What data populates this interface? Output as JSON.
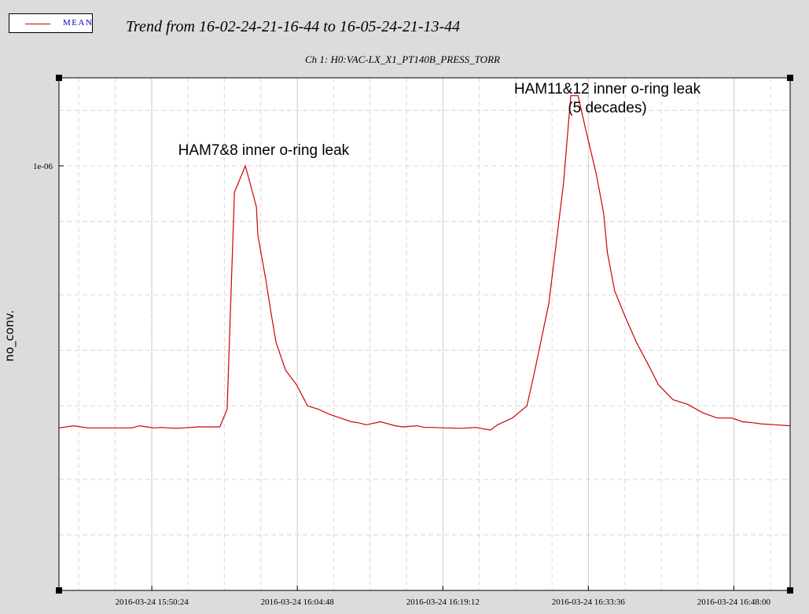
{
  "legend": {
    "label": "MEAN",
    "color": "#d00000"
  },
  "title": "Trend from 16-02-24-21-16-44 to 16-05-24-21-13-44",
  "chart_data": {
    "type": "line",
    "subtitle": "Ch 1: H0:VAC-LX_X1_PT140B_PRESS_TORR",
    "ylabel": "no_conv.",
    "xlabel": "",
    "y_scale": "log",
    "y_tick_labels": [
      {
        "value": 1e-06,
        "label": "1e-06"
      }
    ],
    "x_tick_labels": [
      "2016-03-24 15:50:24",
      "2016-03-24 16:04:48",
      "2016-03-24 16:19:12",
      "2016-03-24 16:33:36",
      "2016-03-24 16:48:00"
    ],
    "x_tick_positions": [
      0.127,
      0.326,
      0.525,
      0.724,
      0.923
    ],
    "xlim_fraction": [
      0,
      1
    ],
    "ylim": [
      5e-09,
      3e-06
    ],
    "grid": true,
    "annotations": [
      {
        "text": "HAM7&8 inner o-ring leak",
        "x": 0.28,
        "y": 1e-06,
        "lines": [
          "HAM7&8 inner o-ring leak"
        ]
      },
      {
        "text": "HAM11&12 inner o-ring leak\n(5 decades)",
        "x": 0.75,
        "y": 1.7e-06,
        "lines": [
          "HAM11&12 inner o-ring leak",
          "(5 decades)"
        ]
      }
    ],
    "series": [
      {
        "name": "MEAN",
        "color": "#d00000",
        "x": [
          0.0,
          0.02,
          0.04,
          0.07,
          0.09,
          0.1,
          0.11,
          0.12,
          0.13,
          0.14,
          0.15,
          0.16,
          0.17,
          0.18,
          0.19,
          0.2,
          0.21,
          0.22,
          0.23,
          0.24,
          0.255,
          0.27,
          0.272,
          0.283,
          0.29,
          0.297,
          0.31,
          0.325,
          0.34,
          0.355,
          0.37,
          0.385,
          0.4,
          0.41,
          0.42,
          0.44,
          0.46,
          0.47,
          0.49,
          0.5,
          0.51,
          0.53,
          0.55,
          0.57,
          0.59,
          0.6,
          0.62,
          0.64,
          0.65,
          0.67,
          0.69,
          0.7,
          0.71,
          0.72,
          0.735,
          0.745,
          0.75,
          0.76,
          0.775,
          0.79,
          0.805,
          0.82,
          0.84,
          0.86,
          0.88,
          0.9,
          0.92,
          0.935,
          0.95,
          0.96,
          0.98,
          1.0
        ],
        "y": [
          3.8e-08,
          3.9e-08,
          3.8e-08,
          3.8e-08,
          3.8e-08,
          3.8e-08,
          3.9e-08,
          3.85e-08,
          3.8e-08,
          3.82e-08,
          3.8e-08,
          3.78e-08,
          3.8e-08,
          3.82e-08,
          3.85e-08,
          3.85e-08,
          3.85e-08,
          3.85e-08,
          4.8e-08,
          7.2e-07,
          1e-06,
          6e-07,
          4.2e-07,
          2.4e-07,
          1.6e-07,
          1.1e-07,
          7.8e-08,
          6.5e-08,
          5e-08,
          4.8e-08,
          4.5e-08,
          4.3e-08,
          4.1e-08,
          4.05e-08,
          3.95e-08,
          4.1e-08,
          3.9e-08,
          3.85e-08,
          3.9e-08,
          3.82e-08,
          3.82e-08,
          3.8e-08,
          3.78e-08,
          3.82e-08,
          3.7e-08,
          3.95e-08,
          4.3e-08,
          5e-08,
          7.5e-08,
          1.8e-07,
          8e-07,
          2.4e-06,
          2.4e-06,
          1.6e-06,
          9e-07,
          5.5e-07,
          3.4e-07,
          2.1e-07,
          1.5e-07,
          1.1e-07,
          8.5e-08,
          6.5e-08,
          5.4e-08,
          5.1e-08,
          4.6e-08,
          4.3e-08,
          4.3e-08,
          4.1e-08,
          4.05e-08,
          4e-08,
          3.95e-08,
          3.9e-08
        ]
      }
    ]
  }
}
